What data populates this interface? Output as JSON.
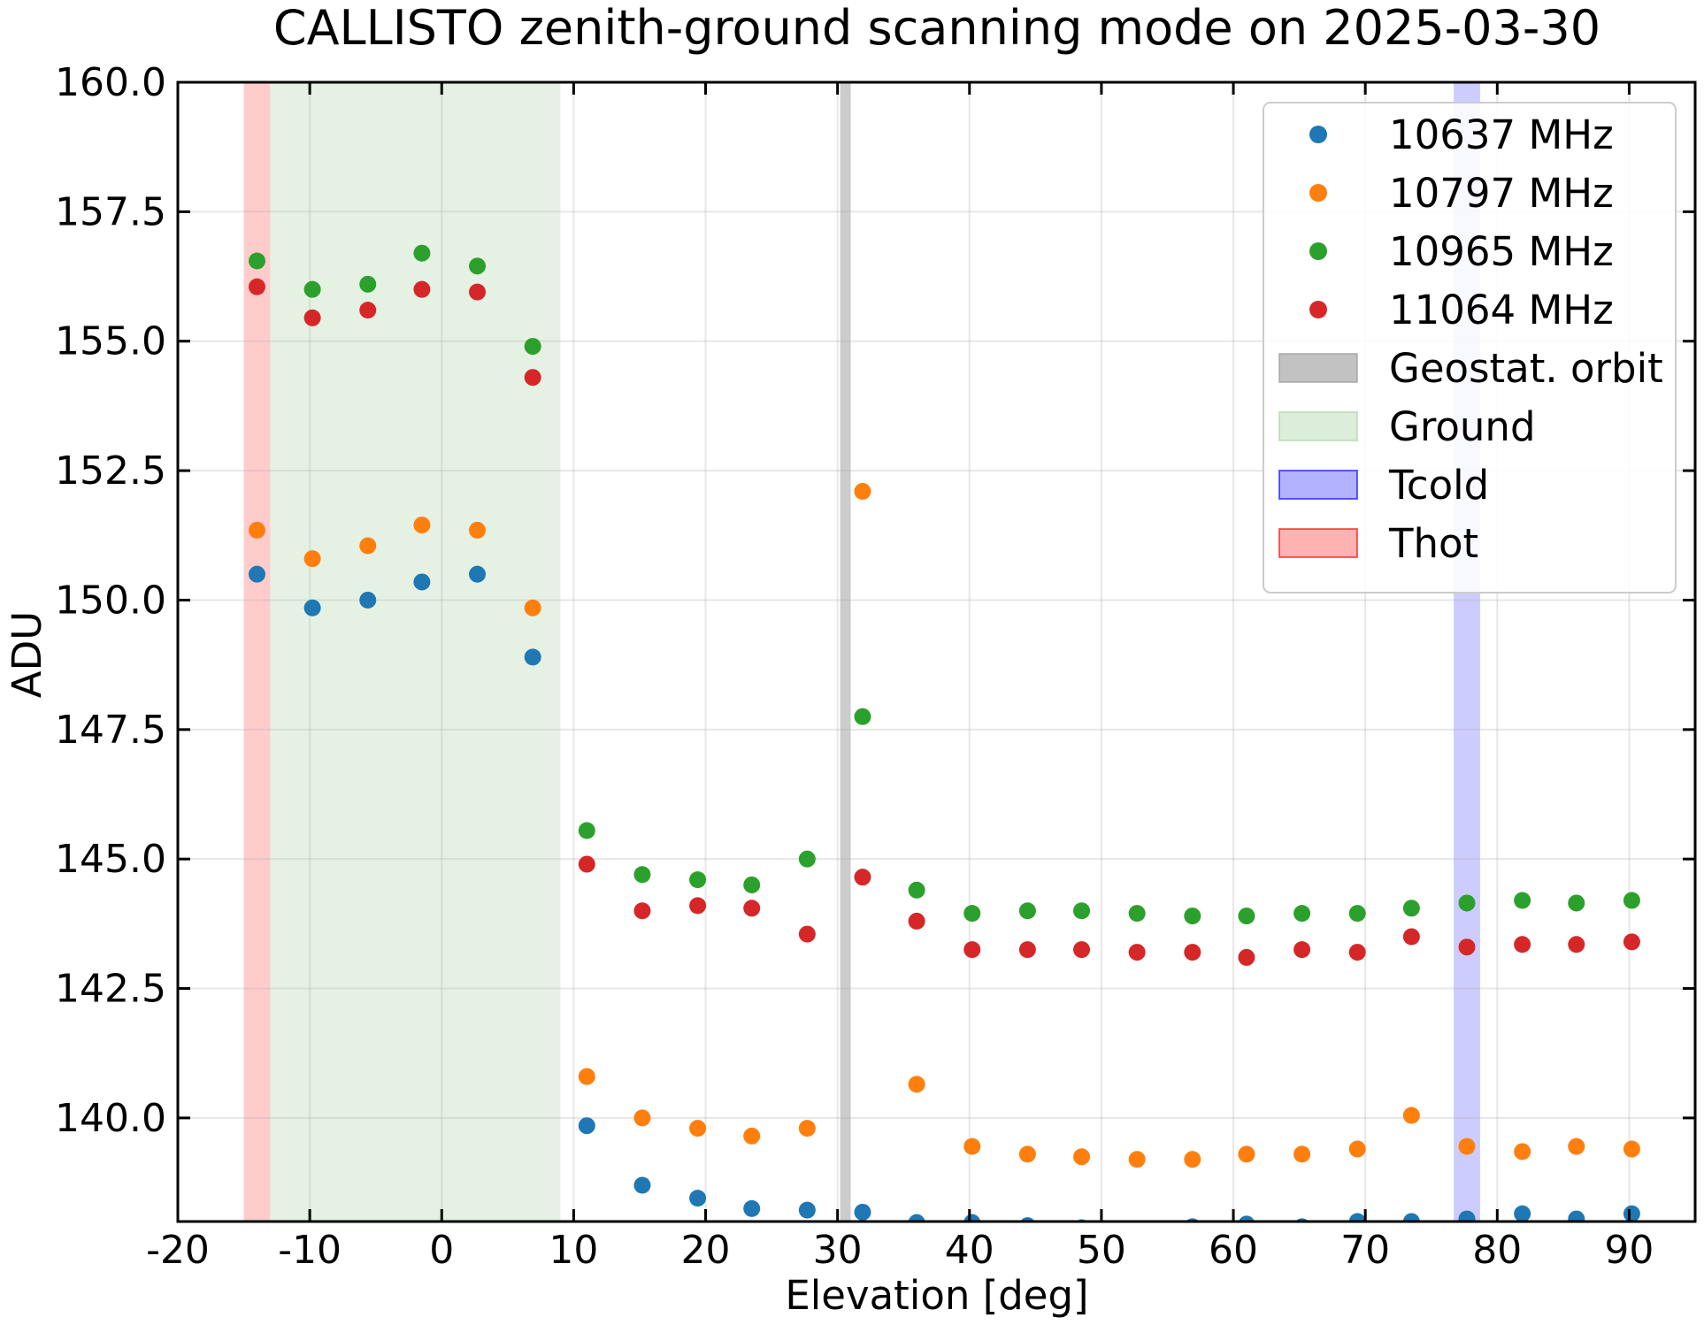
{
  "chart_data": {
    "type": "scatter",
    "title": "CALLISTO zenith-ground scanning mode on 2025-03-30",
    "xlabel": "Elevation [deg]",
    "ylabel": "ADU",
    "xlim": [
      -20,
      95
    ],
    "ylim": [
      138.0,
      160.0
    ],
    "xticks": [
      -20,
      -10,
      0,
      10,
      20,
      30,
      40,
      50,
      60,
      70,
      80,
      90
    ],
    "xtick_labels": [
      "-20",
      "-10",
      "0",
      "10",
      "20",
      "30",
      "40",
      "50",
      "60",
      "70",
      "80",
      "90"
    ],
    "yticks": [
      140.0,
      142.5,
      145.0,
      147.5,
      150.0,
      152.5,
      155.0,
      157.5,
      160.0
    ],
    "ytick_labels": [
      "140.0",
      "142.5",
      "145.0",
      "147.5",
      "150.0",
      "152.5",
      "155.0",
      "157.5",
      "160.0"
    ],
    "grid": true,
    "legend_position": "top-right",
    "x": [
      -14,
      -9.8,
      -5.6,
      -1.5,
      2.7,
      6.9,
      11.0,
      15.2,
      19.4,
      23.5,
      27.7,
      31.9,
      36.0,
      40.2,
      44.4,
      48.5,
      52.7,
      56.9,
      61.0,
      65.2,
      69.4,
      73.5,
      77.7,
      81.9,
      86.0,
      90.2
    ],
    "series": [
      {
        "name": "10637 MHz",
        "color": "#1f77b4",
        "y": [
          150.5,
          149.85,
          150.0,
          150.35,
          150.5,
          148.9,
          139.85,
          138.7,
          138.45,
          138.25,
          138.22,
          138.18,
          137.98,
          137.98,
          137.92,
          137.88,
          137.85,
          137.9,
          137.95,
          137.9,
          138.0,
          138.0,
          138.05,
          138.15,
          138.05,
          138.15
        ]
      },
      {
        "name": "10797 MHz",
        "color": "#ff7f0e",
        "y": [
          151.35,
          150.8,
          151.05,
          151.45,
          151.35,
          149.85,
          140.8,
          140.0,
          139.8,
          139.65,
          139.8,
          152.1,
          140.65,
          139.45,
          139.3,
          139.25,
          139.2,
          139.2,
          139.3,
          139.3,
          139.4,
          140.05,
          139.45,
          139.35,
          139.45,
          139.4
        ]
      },
      {
        "name": "10965 MHz",
        "color": "#2ca02c",
        "y": [
          156.55,
          156.0,
          156.1,
          156.7,
          156.45,
          154.9,
          145.55,
          144.7,
          144.6,
          144.5,
          145.0,
          147.75,
          144.4,
          143.95,
          144.0,
          144.0,
          143.95,
          143.9,
          143.9,
          143.95,
          143.95,
          144.05,
          144.15,
          144.2,
          144.15,
          144.2
        ]
      },
      {
        "name": "11064 MHz",
        "color": "#d62728",
        "y": [
          156.05,
          155.45,
          155.6,
          156.0,
          155.95,
          154.3,
          144.9,
          144.0,
          144.1,
          144.05,
          143.55,
          144.65,
          143.8,
          143.25,
          143.25,
          143.25,
          143.2,
          143.2,
          143.1,
          143.25,
          143.2,
          143.5,
          143.3,
          143.35,
          143.35,
          143.4
        ]
      }
    ],
    "spans": [
      {
        "name": "Geostat. orbit",
        "x_range": [
          30.2,
          31.0
        ],
        "color": "#999999",
        "alpha": 0.5
      },
      {
        "name": "Ground",
        "x_range": [
          -13,
          9
        ],
        "color": "#a8d5a2",
        "alpha": 0.3
      },
      {
        "name": "Tcold",
        "x_range": [
          76.7,
          78.7
        ],
        "color": "#0000ff",
        "alpha": 0.2
      },
      {
        "name": "Thot",
        "x_range": [
          -15,
          -13
        ],
        "color": "#ff0000",
        "alpha": 0.2
      }
    ]
  }
}
